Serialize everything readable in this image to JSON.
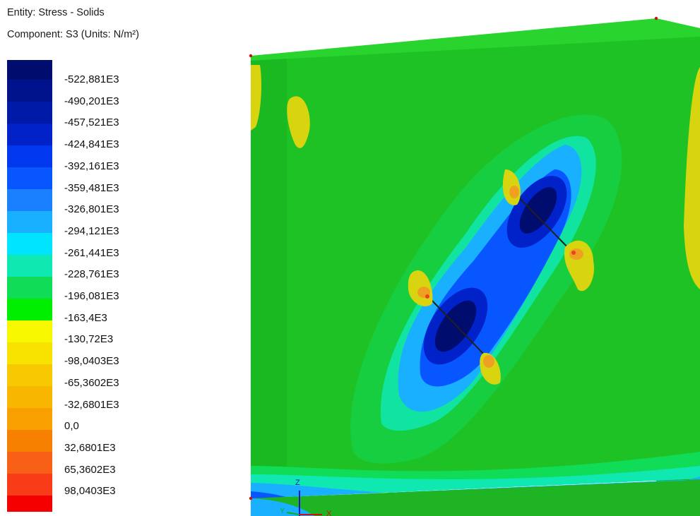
{
  "header": {
    "entity": "Entity: Stress - Solids",
    "component": "Component: S3 (Units: N/m²)"
  },
  "legend": {
    "labels": [
      "-522,881E3",
      "-490,201E3",
      "-457,521E3",
      "-424,841E3",
      "-392,161E3",
      "-359,481E3",
      "-326,801E3",
      "-294,121E3",
      "-261,441E3",
      "-228,761E3",
      "-196,081E3",
      "-163,4E3",
      "-130,72E3",
      "-98,0403E3",
      "-65,3602E3",
      "-32,6801E3",
      "0,0",
      "32,6801E3",
      "65,3602E3",
      "98,0403E3"
    ],
    "colors": [
      "#000c6e",
      "#00128c",
      "#001aa8",
      "#0022c8",
      "#0038f0",
      "#0856ff",
      "#1a80ff",
      "#18b0ff",
      "#00e4ff",
      "#10e8b2",
      "#10dc58",
      "#00ee00",
      "#f8f800",
      "#f8e200",
      "#f8c800",
      "#f8b600",
      "#f8a000",
      "#f88000",
      "#f86018",
      "#f83c18",
      "#f40000"
    ]
  },
  "axes": {
    "z": "Z",
    "y": "Y",
    "x": "X"
  },
  "palette": {
    "front": "#22c82a",
    "top": "#2ad42f",
    "side": "#1eb424",
    "yellow": "#d8d410",
    "orange": "#f0a020",
    "red": "#f04020"
  }
}
